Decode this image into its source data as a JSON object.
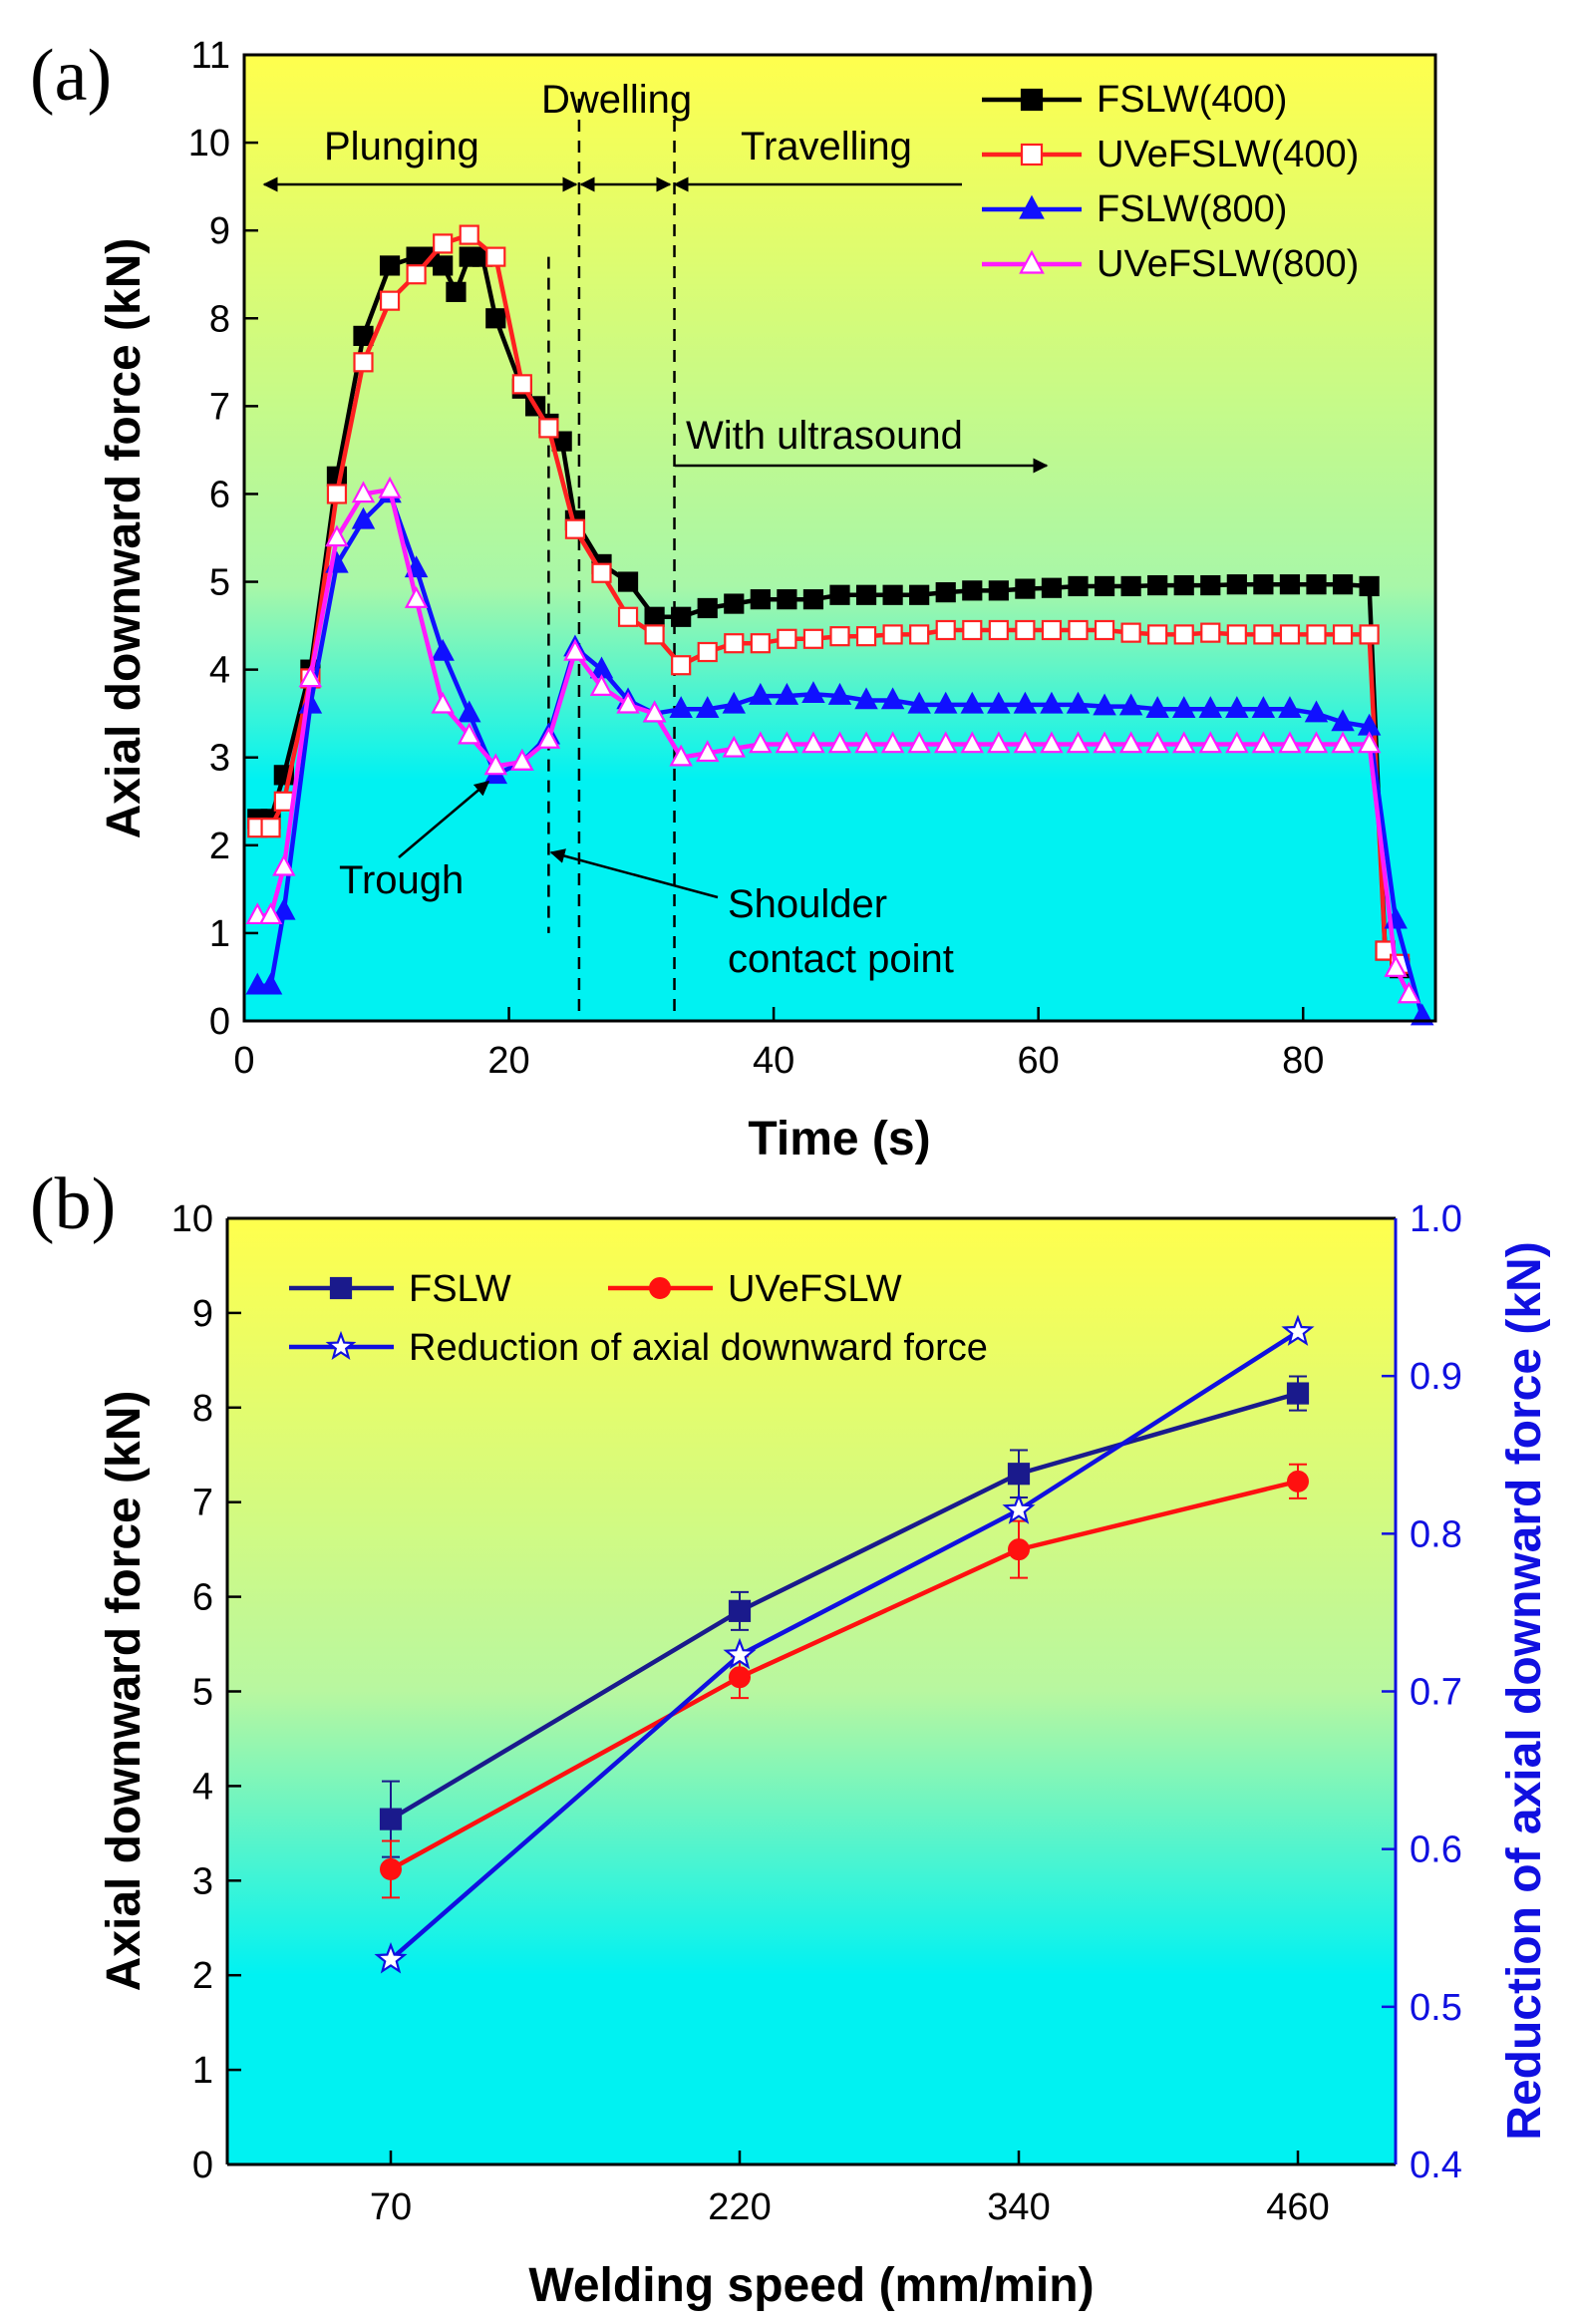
{
  "chart_data": [
    {
      "panel_label": "(a)",
      "type": "line",
      "xlabel": "Time (s)",
      "ylabel": "Axial downward force (kN)",
      "xlim": [
        0,
        90
      ],
      "ylim": [
        0,
        11
      ],
      "xticks": [
        "0",
        "20",
        "40",
        "60",
        "80"
      ],
      "yticks": [
        "0",
        "1",
        "2",
        "3",
        "4",
        "5",
        "6",
        "7",
        "8",
        "9",
        "10",
        "11"
      ],
      "background": {
        "top": "#ffff4d",
        "mid": "#a8f7a8",
        "bottom": "#00f2f2"
      },
      "series": [
        {
          "name": "FSLW(400)",
          "color": "#000000",
          "marker": "square",
          "filled": true,
          "x": [
            1,
            2,
            3,
            5,
            7,
            9,
            11,
            13,
            14,
            15,
            16,
            17,
            18,
            19,
            21,
            22,
            23,
            24,
            25,
            27,
            29,
            31,
            33,
            35,
            37,
            39,
            41,
            43,
            45,
            47,
            49,
            51,
            53,
            55,
            57,
            59,
            61,
            63,
            65,
            67,
            69,
            71,
            73,
            75,
            77,
            79,
            81,
            83,
            85,
            86.2,
            87.3
          ],
          "y": [
            2.3,
            2.3,
            2.8,
            4.0,
            6.2,
            7.8,
            8.6,
            8.7,
            8.7,
            8.6,
            8.3,
            8.7,
            8.7,
            8.0,
            7.2,
            7.0,
            6.8,
            6.6,
            5.7,
            5.2,
            5.0,
            4.6,
            4.6,
            4.7,
            4.75,
            4.8,
            4.8,
            4.8,
            4.85,
            4.85,
            4.85,
            4.85,
            4.88,
            4.9,
            4.9,
            4.92,
            4.93,
            4.95,
            4.95,
            4.95,
            4.96,
            4.96,
            4.96,
            4.97,
            4.97,
            4.97,
            4.97,
            4.97,
            4.95,
            0.8,
            0.6
          ]
        },
        {
          "name": "UVeFSLW(400)",
          "color": "#ff2020",
          "marker": "square",
          "filled": false,
          "x": [
            1,
            2,
            3,
            5,
            7,
            9,
            11,
            13,
            15,
            17,
            19,
            21,
            23,
            25,
            27,
            29,
            31,
            33,
            35,
            37,
            39,
            41,
            43,
            45,
            47,
            49,
            51,
            53,
            55,
            57,
            59,
            61,
            63,
            65,
            67,
            69,
            71,
            73,
            75,
            77,
            79,
            81,
            83,
            85,
            86.2,
            87.3
          ],
          "y": [
            2.2,
            2.2,
            2.5,
            3.9,
            6.0,
            7.5,
            8.2,
            8.5,
            8.85,
            8.95,
            8.7,
            7.25,
            6.75,
            5.6,
            5.1,
            4.6,
            4.4,
            4.05,
            4.2,
            4.3,
            4.3,
            4.35,
            4.35,
            4.38,
            4.38,
            4.4,
            4.4,
            4.45,
            4.45,
            4.45,
            4.45,
            4.45,
            4.45,
            4.45,
            4.42,
            4.4,
            4.4,
            4.42,
            4.4,
            4.4,
            4.4,
            4.4,
            4.4,
            4.4,
            0.8,
            0.65
          ]
        },
        {
          "name": "FSLW(800)",
          "color": "#1010ff",
          "marker": "triangle",
          "filled": true,
          "x": [
            1,
            2,
            3,
            5,
            7,
            9,
            11,
            13,
            15,
            17,
            19,
            21,
            23,
            25,
            27,
            29,
            31,
            33,
            35,
            37,
            39,
            41,
            43,
            45,
            47,
            49,
            51,
            53,
            55,
            57,
            59,
            61,
            63,
            65,
            67,
            69,
            71,
            73,
            75,
            77,
            79,
            81,
            83,
            85,
            87,
            89
          ],
          "y": [
            0.4,
            0.4,
            1.25,
            3.6,
            5.2,
            5.7,
            6.0,
            5.15,
            4.2,
            3.5,
            2.8,
            2.95,
            3.25,
            4.25,
            4.0,
            3.65,
            3.5,
            3.55,
            3.55,
            3.6,
            3.7,
            3.7,
            3.72,
            3.7,
            3.65,
            3.65,
            3.6,
            3.6,
            3.6,
            3.6,
            3.6,
            3.6,
            3.6,
            3.58,
            3.58,
            3.55,
            3.55,
            3.55,
            3.55,
            3.55,
            3.55,
            3.5,
            3.4,
            3.35,
            1.15,
            0.05
          ]
        },
        {
          "name": "UVeFSLW(800)",
          "color": "#ff1aff",
          "marker": "triangle",
          "filled": false,
          "x": [
            1,
            2,
            3,
            5,
            7,
            9,
            11,
            13,
            15,
            17,
            19,
            21,
            23,
            25,
            27,
            29,
            31,
            33,
            35,
            37,
            39,
            41,
            43,
            45,
            47,
            49,
            51,
            53,
            55,
            57,
            59,
            61,
            63,
            65,
            67,
            69,
            71,
            73,
            75,
            77,
            79,
            81,
            83,
            85,
            87,
            88
          ],
          "y": [
            1.2,
            1.2,
            1.75,
            3.9,
            5.5,
            6.0,
            6.05,
            4.8,
            3.6,
            3.25,
            2.9,
            2.95,
            3.2,
            4.2,
            3.8,
            3.6,
            3.5,
            3.0,
            3.05,
            3.1,
            3.15,
            3.15,
            3.15,
            3.15,
            3.15,
            3.15,
            3.15,
            3.15,
            3.15,
            3.15,
            3.15,
            3.15,
            3.15,
            3.15,
            3.15,
            3.15,
            3.15,
            3.15,
            3.15,
            3.15,
            3.15,
            3.15,
            3.15,
            3.15,
            0.6,
            0.3
          ]
        }
      ],
      "annotations": {
        "plunging": "Plunging",
        "dwelling": "Dwelling",
        "travelling": "Travelling",
        "with_ultrasound": "With ultrasound",
        "trough": "Trough",
        "shoulder_line1": "Shoulder",
        "shoulder_line2": "contact point"
      },
      "phase_markers_s": [
        23,
        25.3,
        32.5
      ],
      "legend_position": "top-right"
    },
    {
      "panel_label": "(b)",
      "type": "line",
      "xlabel": "Welding speed (mm/min)",
      "ylabel": "Axial downward force (kN)",
      "y2label": "Reduction of axial downward force (kN)",
      "categories": [
        "70",
        "220",
        "340",
        "460"
      ],
      "ylim": [
        0,
        10
      ],
      "y2lim": [
        0.4,
        1.0
      ],
      "yticks": [
        "0",
        "1",
        "2",
        "3",
        "4",
        "5",
        "6",
        "7",
        "8",
        "9",
        "10"
      ],
      "y2ticks": [
        "0.4",
        "0.5",
        "0.6",
        "0.7",
        "0.8",
        "0.9",
        "1.0"
      ],
      "background": {
        "top": "#ffff4d",
        "mid": "#b8f7a0",
        "bottom": "#00f2f2"
      },
      "series": [
        {
          "name": "FSLW",
          "color": "#1a1a8c",
          "marker": "square",
          "axis": "left",
          "values": [
            3.65,
            5.85,
            7.3,
            8.15
          ],
          "errors": [
            0.4,
            0.2,
            0.25,
            0.18
          ]
        },
        {
          "name": "UVeFSLW",
          "color": "#ff1010",
          "marker": "circle",
          "axis": "left",
          "values": [
            3.12,
            5.15,
            6.5,
            7.22
          ],
          "errors": [
            0.3,
            0.22,
            0.3,
            0.18
          ]
        },
        {
          "name": "Reduction of axial downward force",
          "color": "#1010e0",
          "marker": "star",
          "axis": "right",
          "values": [
            0.53,
            0.723,
            0.815,
            0.928
          ]
        }
      ],
      "legend_position": "top-left"
    }
  ]
}
